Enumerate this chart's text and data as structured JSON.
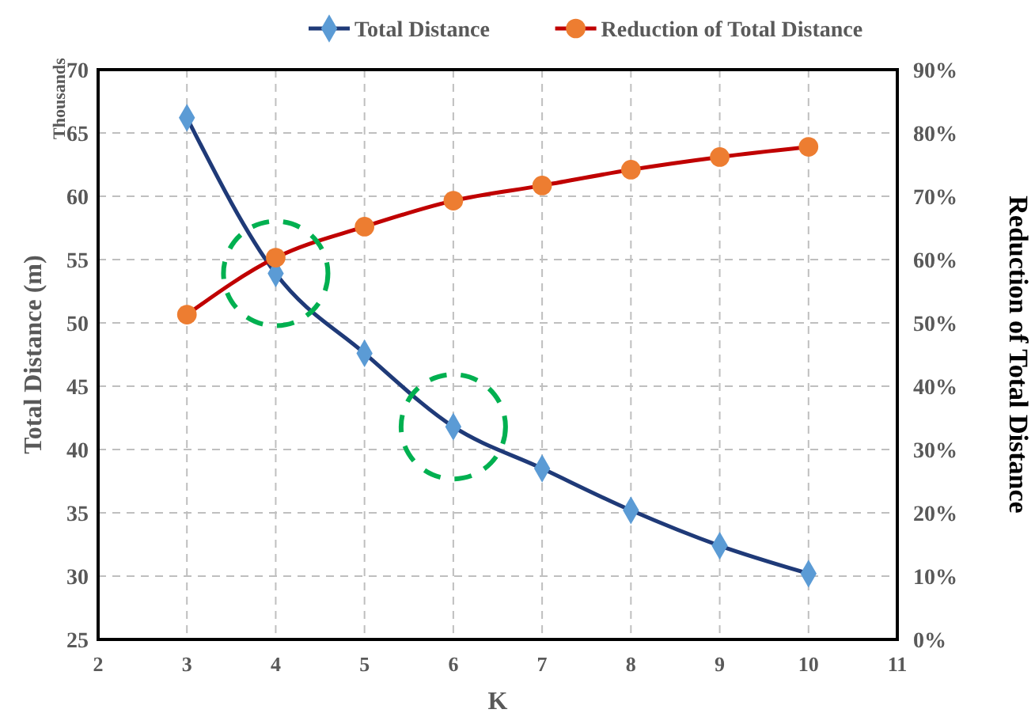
{
  "chart_data": {
    "type": "line",
    "xlabel": "K",
    "ylabel": "Total Distance (m)",
    "y2label": "Reduction of Total Distance",
    "annotations": [
      "Thousands"
    ],
    "x": [
      3,
      4,
      5,
      6,
      7,
      8,
      9,
      10
    ],
    "xlim": [
      2,
      11
    ],
    "xticks": [
      2,
      3,
      4,
      5,
      6,
      7,
      8,
      9,
      10,
      11
    ],
    "ylim": [
      25,
      70
    ],
    "yticks": [
      25,
      30,
      35,
      40,
      45,
      50,
      55,
      60,
      65,
      70
    ],
    "y2lim": [
      0,
      90
    ],
    "y2ticks": [
      {
        "value": 0,
        "label": "0%"
      },
      {
        "value": 10,
        "label": "10%"
      },
      {
        "value": 20,
        "label": "20%"
      },
      {
        "value": 30,
        "label": "30%"
      },
      {
        "value": 40,
        "label": "40%"
      },
      {
        "value": 50,
        "label": "50%"
      },
      {
        "value": 60,
        "label": "60%"
      },
      {
        "value": 70,
        "label": "70%"
      },
      {
        "value": 80,
        "label": "80%"
      },
      {
        "value": 90,
        "label": "90%"
      }
    ],
    "grid": true,
    "legend": "top",
    "series": [
      {
        "name": "Total Distance",
        "color": "#1f3a78",
        "marker": "diamond",
        "values": [
          66.2,
          53.9,
          47.6,
          41.8,
          38.5,
          35.2,
          32.4,
          30.2
        ]
      },
      {
        "name": "Reduction of Total Distance",
        "color": "#c00000",
        "marker": "circle",
        "axis": "y2",
        "values": [
          51.3,
          60.3,
          65.2,
          69.3,
          71.7,
          74.2,
          76.2,
          77.8
        ]
      }
    ]
  }
}
